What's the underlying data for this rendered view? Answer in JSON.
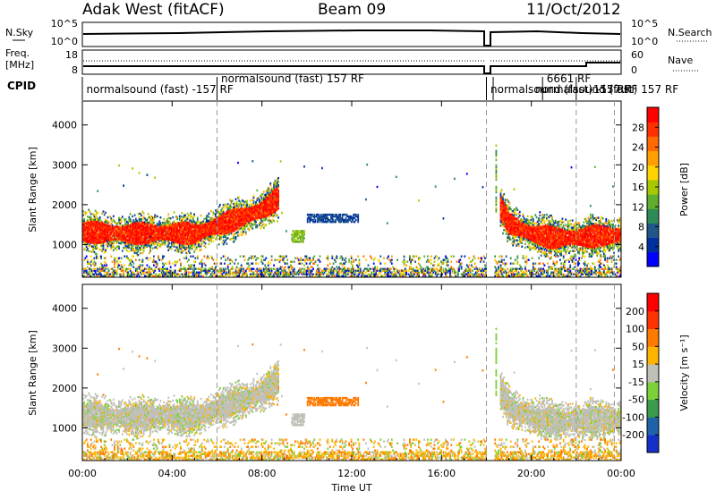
{
  "header": {
    "station": "Adak West (fitACF)",
    "beam": "Beam 09",
    "date": "11/Oct/2012"
  },
  "sky_panel": {
    "left_label": "N.Sky",
    "right_label": "N.Search",
    "left_ticks": [
      "10^5",
      "10^0"
    ],
    "right_ticks": [
      "10^5",
      "10^0"
    ]
  },
  "freq_panel": {
    "left_label_1": "Freq.",
    "left_label_2": "[MHz]",
    "right_label": "Nave",
    "left_ticks": [
      "18",
      "8"
    ],
    "right_ticks": [
      "60",
      "0"
    ]
  },
  "cpid": {
    "label": "CPID",
    "entries": [
      {
        "text": "normalsound (fast) -157 RF",
        "row": 1,
        "t": 0.1
      },
      {
        "text": "normalsound (fast) 157 RF",
        "row": 0,
        "t": 6.1
      },
      {
        "text": "normalsound (fast) -157 RF",
        "row": 1,
        "t": 18.1
      },
      {
        "text": "normalsound (fast) 157 RF",
        "row": 1,
        "t": 20.1
      },
      {
        "text": "6661 RF",
        "row": 0,
        "t": 20.6
      },
      {
        "text": "-157 RF",
        "row": 1,
        "t": 22.5
      }
    ]
  },
  "chart_data": [
    {
      "type": "heatmap",
      "panel": "power",
      "ylabel": "Slant Range [km]",
      "colorbar_label": "Power [dB]",
      "colorbar_ticks": [
        "28",
        "24",
        "20",
        "16",
        "12",
        "8",
        "4"
      ],
      "colorbar_colors": [
        "#0000ff",
        "#0030a0",
        "#20568a",
        "#2e8b57",
        "#5fae2e",
        "#a6c800",
        "#ffd400",
        "#ffa000",
        "#ff6a00",
        "#ff3000",
        "#ff0000"
      ],
      "xlim": [
        0,
        24
      ],
      "ylim": [
        180,
        4600
      ],
      "yticks": [
        1000,
        2000,
        3000,
        4000
      ],
      "series": [
        {
          "name": "main echo band",
          "x": [
            0,
            2,
            4,
            5,
            6,
            7,
            8,
            8.7
          ],
          "y": [
            1300,
            1250,
            1280,
            1250,
            1450,
            1650,
            1850,
            2150
          ]
        },
        {
          "name": "echo band after gap",
          "x": [
            18.6,
            19,
            20,
            21,
            22,
            23,
            24
          ],
          "y": [
            1900,
            1500,
            1250,
            1150,
            1150,
            1200,
            1200
          ]
        }
      ]
    },
    {
      "type": "heatmap",
      "panel": "velocity",
      "ylabel": "Slant Range [km]",
      "xlabel": "Time UT",
      "colorbar_label": "Velocity [m s⁻¹]",
      "colorbar_ticks": [
        "200",
        "100",
        "50",
        "15",
        "-15",
        "-50",
        "-100",
        "-200"
      ],
      "colorbar_colors": [
        "#1530c8",
        "#1f62a8",
        "#3a9b4a",
        "#7cd038",
        "#c0c0b8",
        "#ffb400",
        "#ff7a00",
        "#ff3300",
        "#ff0000"
      ],
      "xlim": [
        0,
        24
      ],
      "ylim": [
        180,
        4600
      ],
      "xticks": [
        "00:00",
        "04:00",
        "08:00",
        "12:00",
        "16:00",
        "20:00",
        "00:00"
      ],
      "yticks": [
        1000,
        2000,
        3000,
        4000
      ]
    }
  ]
}
